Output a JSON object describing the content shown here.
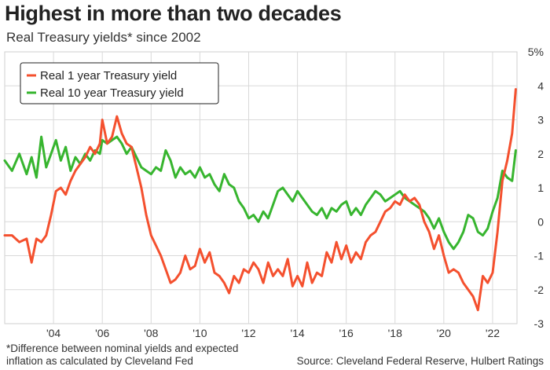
{
  "chart_data": {
    "type": "line",
    "title": "Highest in more than two decades",
    "subtitle": "Real Treasury yields* since 2002",
    "footnote_line1": "*Difference between nominal yields and expected",
    "footnote_line2": "inflation as calculated by Cleveland Fed",
    "source": "Source: Cleveland Federal Reserve, Hulbert Ratings",
    "x_ticks": [
      "'04",
      "'06",
      "'08",
      "'10",
      "'12",
      "'14",
      "'16",
      "'18",
      "'20",
      "'22"
    ],
    "x_tick_values": [
      2004,
      2006,
      2008,
      2010,
      2012,
      2014,
      2016,
      2018,
      2020,
      2022
    ],
    "y_ticks": [
      "5%",
      "4",
      "3",
      "2",
      "1",
      "0",
      "-1",
      "-2",
      "-3"
    ],
    "y_tick_values": [
      5,
      4,
      3,
      2,
      1,
      0,
      -1,
      -2,
      -3
    ],
    "xlim": [
      2002.0,
      2023.0
    ],
    "ylim": [
      -3,
      5
    ],
    "grid": true,
    "legend_position": "top-left",
    "series": [
      {
        "name": "Real 1 year Treasury yield",
        "color": "#f4502e",
        "x": [
          2002.0,
          2002.3,
          2002.6,
          2002.9,
          2003.1,
          2003.3,
          2003.5,
          2003.7,
          2003.9,
          2004.1,
          2004.3,
          2004.5,
          2004.7,
          2004.9,
          2005.1,
          2005.3,
          2005.5,
          2005.7,
          2005.9,
          2006.0,
          2006.2,
          2006.4,
          2006.6,
          2006.8,
          2007.0,
          2007.2,
          2007.4,
          2007.6,
          2007.8,
          2008.0,
          2008.2,
          2008.4,
          2008.6,
          2008.8,
          2009.0,
          2009.2,
          2009.4,
          2009.6,
          2009.8,
          2010.0,
          2010.2,
          2010.4,
          2010.6,
          2010.8,
          2011.0,
          2011.2,
          2011.4,
          2011.6,
          2011.8,
          2012.0,
          2012.2,
          2012.4,
          2012.6,
          2012.8,
          2013.0,
          2013.2,
          2013.4,
          2013.6,
          2013.8,
          2014.0,
          2014.2,
          2014.4,
          2014.6,
          2014.8,
          2015.0,
          2015.2,
          2015.4,
          2015.6,
          2015.8,
          2016.0,
          2016.2,
          2016.4,
          2016.6,
          2016.8,
          2017.0,
          2017.2,
          2017.4,
          2017.6,
          2017.8,
          2018.0,
          2018.2,
          2018.4,
          2018.6,
          2018.8,
          2019.0,
          2019.2,
          2019.4,
          2019.6,
          2019.8,
          2020.0,
          2020.2,
          2020.4,
          2020.6,
          2020.8,
          2021.0,
          2021.2,
          2021.4,
          2021.6,
          2021.8,
          2022.0,
          2022.2,
          2022.4,
          2022.6,
          2022.8,
          2022.95
        ],
        "values": [
          -0.4,
          -0.4,
          -0.6,
          -0.5,
          -1.2,
          -0.5,
          -0.6,
          -0.4,
          0.2,
          0.9,
          1.0,
          0.8,
          1.2,
          1.5,
          1.7,
          1.9,
          2.2,
          2.0,
          2.3,
          3.0,
          2.3,
          2.5,
          3.1,
          2.6,
          2.3,
          2.2,
          1.6,
          1.0,
          0.2,
          -0.4,
          -0.7,
          -1.0,
          -1.4,
          -1.8,
          -1.7,
          -1.5,
          -1.0,
          -1.4,
          -1.3,
          -0.8,
          -1.2,
          -0.9,
          -1.5,
          -1.6,
          -1.8,
          -2.1,
          -1.6,
          -1.8,
          -1.4,
          -1.5,
          -1.2,
          -1.4,
          -1.8,
          -1.2,
          -1.6,
          -1.4,
          -1.6,
          -1.1,
          -1.9,
          -1.6,
          -1.9,
          -1.2,
          -1.8,
          -1.5,
          -1.6,
          -0.9,
          -1.2,
          -0.6,
          -1.1,
          -0.7,
          -1.2,
          -0.9,
          -1.1,
          -0.6,
          -0.4,
          -0.3,
          0.0,
          0.3,
          0.4,
          0.6,
          0.5,
          0.8,
          0.6,
          0.7,
          0.5,
          0.0,
          -0.3,
          -0.8,
          -0.4,
          -1.0,
          -1.5,
          -1.4,
          -1.5,
          -1.8,
          -2.0,
          -2.2,
          -2.6,
          -1.6,
          -1.8,
          -1.5,
          -0.3,
          1.2,
          1.8,
          2.6,
          3.9
        ]
      },
      {
        "name": "Real 10 year Treasury yield",
        "color": "#37b52f",
        "x": [
          2002.0,
          2002.3,
          2002.6,
          2002.9,
          2003.1,
          2003.3,
          2003.5,
          2003.7,
          2003.9,
          2004.1,
          2004.3,
          2004.5,
          2004.7,
          2004.9,
          2005.1,
          2005.3,
          2005.5,
          2005.7,
          2005.9,
          2006.0,
          2006.2,
          2006.4,
          2006.6,
          2006.8,
          2007.0,
          2007.2,
          2007.4,
          2007.6,
          2007.8,
          2008.0,
          2008.2,
          2008.4,
          2008.6,
          2008.8,
          2009.0,
          2009.2,
          2009.4,
          2009.6,
          2009.8,
          2010.0,
          2010.2,
          2010.4,
          2010.6,
          2010.8,
          2011.0,
          2011.2,
          2011.4,
          2011.6,
          2011.8,
          2012.0,
          2012.2,
          2012.4,
          2012.6,
          2012.8,
          2013.0,
          2013.2,
          2013.4,
          2013.6,
          2013.8,
          2014.0,
          2014.2,
          2014.4,
          2014.6,
          2014.8,
          2015.0,
          2015.2,
          2015.4,
          2015.6,
          2015.8,
          2016.0,
          2016.2,
          2016.4,
          2016.6,
          2016.8,
          2017.0,
          2017.2,
          2017.4,
          2017.6,
          2017.8,
          2018.0,
          2018.2,
          2018.4,
          2018.6,
          2018.8,
          2019.0,
          2019.2,
          2019.4,
          2019.6,
          2019.8,
          2020.0,
          2020.2,
          2020.4,
          2020.6,
          2020.8,
          2021.0,
          2021.2,
          2021.4,
          2021.6,
          2021.8,
          2022.0,
          2022.2,
          2022.4,
          2022.6,
          2022.8,
          2022.95
        ],
        "values": [
          1.8,
          1.5,
          2.0,
          1.4,
          1.9,
          1.3,
          2.5,
          1.6,
          2.0,
          2.4,
          1.8,
          2.2,
          1.5,
          1.9,
          1.7,
          2.0,
          1.8,
          2.1,
          2.0,
          2.4,
          2.3,
          2.4,
          2.5,
          2.3,
          2.0,
          2.2,
          1.9,
          1.6,
          1.5,
          1.4,
          1.6,
          1.5,
          2.1,
          1.8,
          1.3,
          1.6,
          1.4,
          1.5,
          1.3,
          1.6,
          1.3,
          1.4,
          1.1,
          0.9,
          1.4,
          1.1,
          1.0,
          0.6,
          0.4,
          0.1,
          0.2,
          0.0,
          0.3,
          0.1,
          0.5,
          0.9,
          1.0,
          0.8,
          0.6,
          0.9,
          0.7,
          0.5,
          0.3,
          0.2,
          0.4,
          0.1,
          0.4,
          0.3,
          0.5,
          0.6,
          0.2,
          0.4,
          0.2,
          0.5,
          0.7,
          0.9,
          0.8,
          0.6,
          0.7,
          0.8,
          0.9,
          0.7,
          0.6,
          0.5,
          0.4,
          0.3,
          0.1,
          -0.2,
          0.1,
          -0.3,
          -0.6,
          -0.8,
          -0.6,
          -0.3,
          0.2,
          0.1,
          -0.3,
          -0.4,
          -0.2,
          0.3,
          0.7,
          1.5,
          1.3,
          1.2,
          2.1
        ]
      }
    ]
  }
}
